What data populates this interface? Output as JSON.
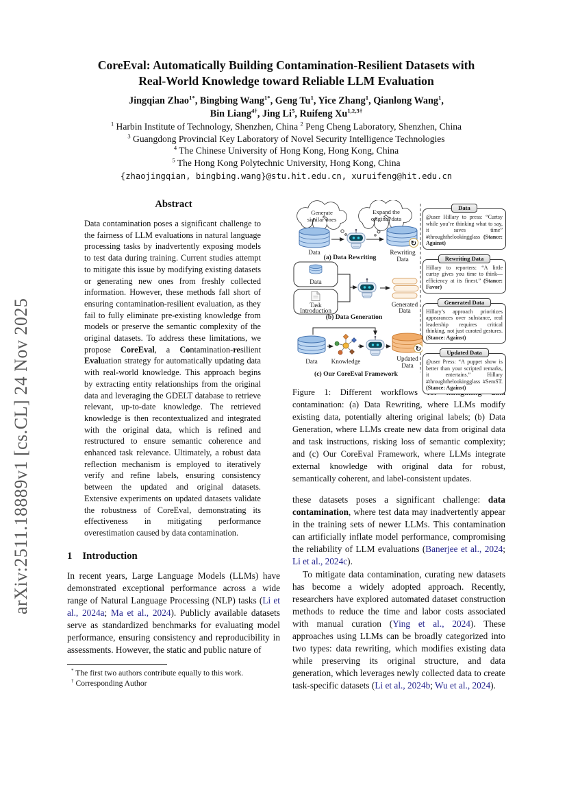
{
  "arxiv_stamp": "arXiv:2511.18889v1  [cs.CL]  24 Nov 2025",
  "colors": {
    "citation_blue": "#23238c",
    "stamp_gray": "#595959",
    "database_blue": "#bcd6f2",
    "database_blue_stroke": "#4472ae",
    "updated_orange": "#f6c18c",
    "updated_orange_stroke": "#cf7f34",
    "robot_screen_teal": "#0d4a5a",
    "robot_eye_cyan": "#3cd4e6"
  },
  "header": {
    "title_lines": [
      "CoreEval: Automatically Building Contamination-Resilient Datasets with",
      "Real-World Knowledge toward Reliable LLM Evaluation"
    ],
    "authors_line1": [
      {
        "t": "Jingqian Zhao"
      },
      {
        "t": "1*",
        "s": "sup"
      },
      {
        "t": ", Bingbing Wang"
      },
      {
        "t": "1*",
        "s": "sup"
      },
      {
        "t": ", Geng Tu"
      },
      {
        "t": "1",
        "s": "sup"
      },
      {
        "t": ", Yice Zhang"
      },
      {
        "t": "1",
        "s": "sup"
      },
      {
        "t": ", Qianlong Wang"
      },
      {
        "t": "1",
        "s": "sup"
      },
      {
        "t": ","
      }
    ],
    "authors_line2": [
      {
        "t": "Bin Liang"
      },
      {
        "t": "4†",
        "s": "sup"
      },
      {
        "t": ", Jing Li"
      },
      {
        "t": "5",
        "s": "sup"
      },
      {
        "t": ", Ruifeng Xu"
      },
      {
        "t": "1,2,3†",
        "s": "sup"
      }
    ],
    "affiliation_lines": [
      [
        {
          "t": "1",
          "s": "sup"
        },
        {
          "t": " Harbin Institute of Technology, Shenzhen, China    "
        },
        {
          "t": "2",
          "s": "sup"
        },
        {
          "t": " Peng Cheng Laboratory, Shenzhen, China"
        }
      ],
      [
        {
          "t": "3",
          "s": "sup"
        },
        {
          "t": " Guangdong Provincial Key Laboratory of Novel Security Intelligence Technologies"
        }
      ],
      [
        {
          "t": "4",
          "s": "sup"
        },
        {
          "t": " The Chinese University of Hong Kong, Hong Kong, China"
        }
      ],
      [
        {
          "t": "5",
          "s": "sup"
        },
        {
          "t": " The Hong Kong Polytechnic University, Hong Kong, China"
        }
      ]
    ],
    "emails": "{zhaojingqian, bingbing.wang}@stu.hit.edu.cn, xuruifeng@hit.edu.cn"
  },
  "abstract": {
    "heading": "Abstract",
    "runs": [
      {
        "t": "Data contamination poses a significant challenge to the fairness of LLM evaluations in natural language processing tasks by inadvertently exposing models to test data during training. Current studies attempt to mitigate this issue by modifying existing datasets or generating new ones from freshly collected information. However, these methods fall short of ensuring contamination-resilient evaluation, as they fail to fully eliminate pre-existing knowledge from models or preserve the semantic complexity of the original datasets. To address these limitations, we propose "
      },
      {
        "t": "CoreEval",
        "s": "b"
      },
      {
        "t": ", a "
      },
      {
        "t": "Co",
        "s": "b"
      },
      {
        "t": "ntamination-"
      },
      {
        "t": "re",
        "s": "b"
      },
      {
        "t": "silient "
      },
      {
        "t": "Eval",
        "s": "b"
      },
      {
        "t": "uation strategy for automatically updating data with real-world knowledge. This approach begins by extracting entity relationships from the original data and leveraging the GDELT database to retrieve relevant, up-to-date knowledge. The retrieved knowledge is then recontextualized and integrated with the original data, which is refined and restructured to ensure semantic coherence and enhanced task relevance. Ultimately, a robust data reflection mechanism is employed to iteratively verify and refine labels, ensuring consistency between the updated and original datasets. Extensive experiments on updated datasets validate the robustness of CoreEval, demonstrating its effectiveness in mitigating performance overestimation caused by data contamination."
      }
    ]
  },
  "sections": {
    "intro": {
      "number": "1",
      "title": "Introduction"
    }
  },
  "intro_p1": [
    {
      "t": "In recent years, Large Language Models (LLMs) have demonstrated exceptional performance across a wide range of Natural Language Processing (NLP) tasks ("
    },
    {
      "t": "Li et al., 2024a",
      "s": "cite"
    },
    {
      "t": "; "
    },
    {
      "t": "Ma et al., 2024",
      "s": "cite"
    },
    {
      "t": "). Publicly available datasets serve as standardized benchmarks for evaluating model performance, ensuring consistency and reproducibility in assessments. However, the static and public nature of"
    }
  ],
  "footnotes": [
    [
      {
        "t": "*",
        "s": "sup"
      },
      {
        "t": " The first two authors contribute equally to this work."
      }
    ],
    [
      {
        "t": "†",
        "s": "sup"
      },
      {
        "t": " Corresponding Author"
      }
    ]
  ],
  "figure": {
    "panel_a": {
      "cloud1": [
        "Generate",
        "similar ones"
      ],
      "cloud2": [
        "Expand the",
        "original data"
      ],
      "data_label": "Data",
      "rewriting_label": [
        "Rewriting",
        "Data"
      ],
      "caption": "(a) Data Rewriting"
    },
    "panel_b": {
      "box1_label": "Data",
      "box2_label": [
        "Task",
        "Introduction"
      ],
      "generated_label": [
        "Generated",
        "Data"
      ],
      "caption": "(b) Data Generation"
    },
    "panel_c": {
      "data_label": "Data",
      "knowledge_label": "Knowledge",
      "updated_label": [
        "Updated",
        "Data"
      ],
      "caption": "(c) Our CoreEval Framework"
    },
    "examples": [
      {
        "header": "Data",
        "runs": [
          {
            "t": "@user Hillary to press: “Curtsy while you’re thinking what to say, it saves time” #throughthelookingglass "
          },
          {
            "t": "(Stance: Against)",
            "s": "b"
          }
        ]
      },
      {
        "header": "Rewriting Data",
        "runs": [
          {
            "t": "Hillary to reporters: “A little curtsy gives you time to think—efficiency at its finest.” "
          },
          {
            "t": "(Stance: Favor)",
            "s": "b"
          }
        ]
      },
      {
        "header": "Generated Data",
        "runs": [
          {
            "t": "Hillary’s approach prioritizes appearances over substance, real leadership requires critical thinking, not just curated gestures. "
          },
          {
            "t": "(Stance: Against)",
            "s": "b"
          }
        ]
      },
      {
        "header": "Updated Data",
        "runs": [
          {
            "t": "@user Press: “A puppet show is better than your scripted remarks, it entertains.” Hillary #throughthelookingglass #SemST. "
          },
          {
            "t": "(Stance: Against)",
            "s": "b"
          }
        ]
      }
    ],
    "caption": "Figure 1: Different workflows for mitigating data contamination: (a) Data Rewriting, where LLMs modify existing data, potentially altering original labels; (b) Data Generation, where LLMs create new data from original data and task instructions, risking loss of semantic complexity; and (c) Our CoreEval Framework, where LLMs integrate external knowledge with original data for robust, semantically coherent, and label-consistent updates."
  },
  "right_p1": [
    {
      "t": "these datasets poses a significant challenge: "
    },
    {
      "t": "data contamination",
      "s": "b"
    },
    {
      "t": ", where test data may inadvertently appear in the training sets of newer LLMs. This contamination can artificially inflate model performance, compromising the reliability of LLM evaluations ("
    },
    {
      "t": "Banerjee et al., 2024",
      "s": "cite"
    },
    {
      "t": "; "
    },
    {
      "t": "Li et al., 2024c",
      "s": "cite"
    },
    {
      "t": ")."
    }
  ],
  "right_p2": [
    {
      "t": "To mitigate data contamination, curating new datasets has become a widely adopted approach. Recently, researchers have explored automated dataset construction methods to reduce the time and labor costs associated with manual curation ("
    },
    {
      "t": "Ying et al., 2024",
      "s": "cite"
    },
    {
      "t": "). These approaches using LLMs can be broadly categorized into two types: data rewriting, which modifies existing data while preserving its original structure, and data generation, which leverages newly collected data to create task-specific datasets ("
    },
    {
      "t": "Li et al., 2024b",
      "s": "cite"
    },
    {
      "t": "; "
    },
    {
      "t": "Wu et al., 2024",
      "s": "cite"
    },
    {
      "t": ")."
    }
  ]
}
